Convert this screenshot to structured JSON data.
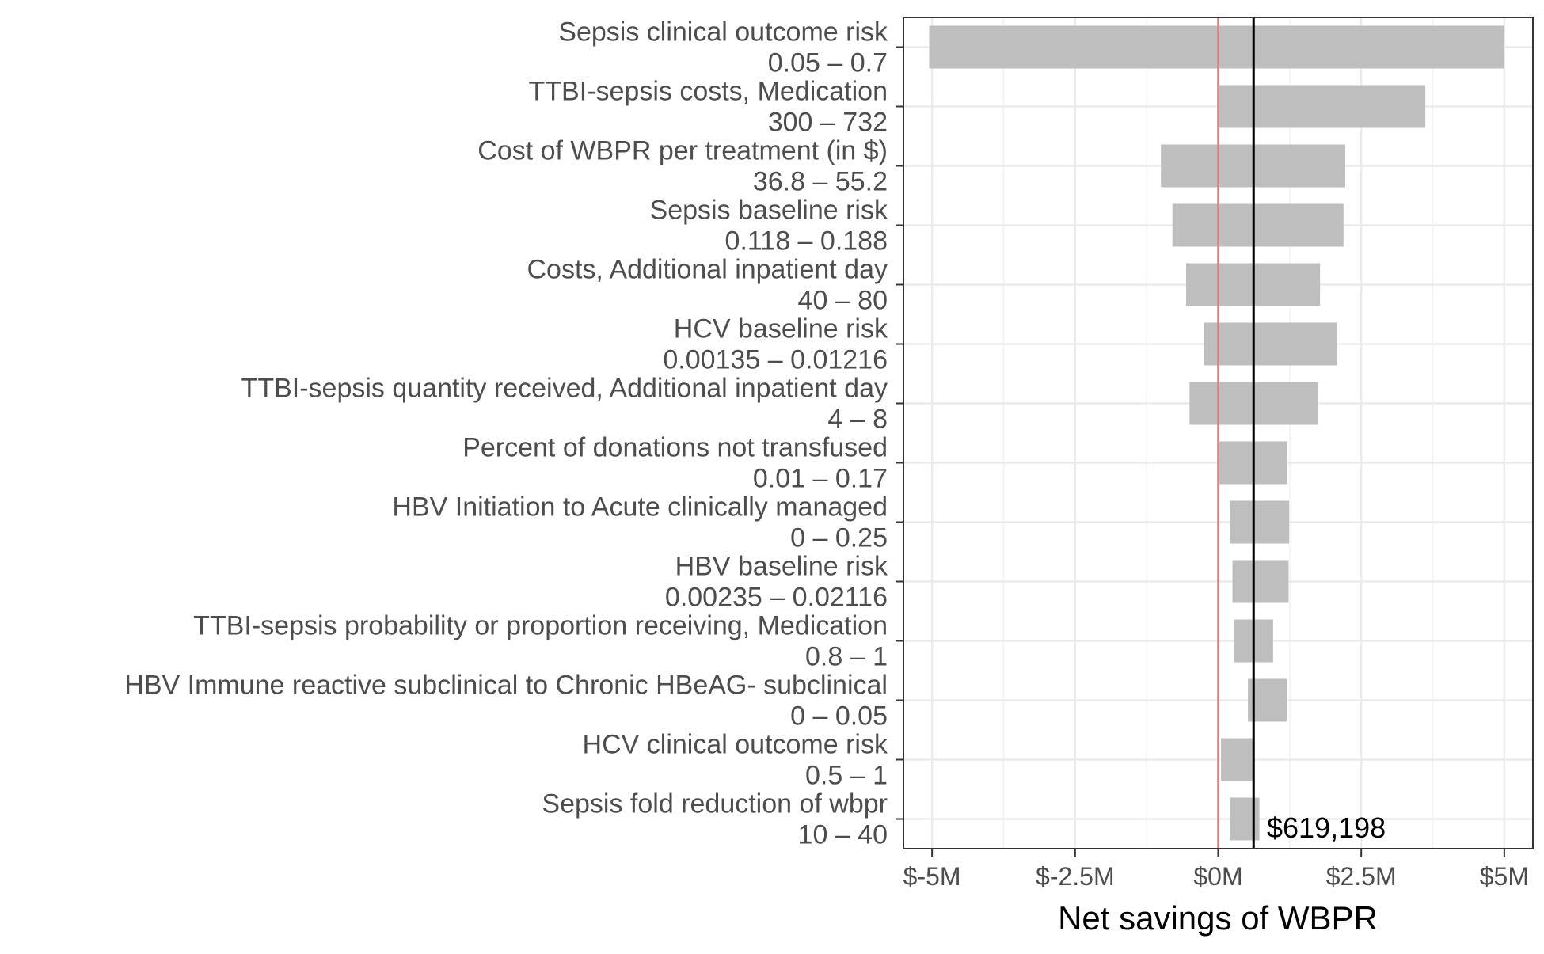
{
  "chart_data": {
    "type": "bar",
    "subtype": "tornado",
    "title": "",
    "xlabel": "Net savings of WBPR",
    "ylabel": "",
    "xlim": [
      -5500000,
      5500000
    ],
    "x_ticks": [
      -5000000,
      -2500000,
      0,
      2500000,
      5000000
    ],
    "x_tick_labels": [
      "$-5M",
      "$-2.5M",
      "$0M",
      "$2.5M",
      "$5M"
    ],
    "grid": true,
    "baseline": {
      "value": 619198,
      "label": "$619,198",
      "color": "#000000"
    },
    "zero_line": {
      "value": 0,
      "color": "#f8766d"
    },
    "bar_color": "#bebebe",
    "rows": [
      {
        "parameter": "Sepsis clinical outcome risk",
        "range": "0.05 – 0.7",
        "low": -5050000,
        "high": 5000000
      },
      {
        "parameter": "TTBI-sepsis costs, Medication",
        "range": "300 – 732",
        "low": 0,
        "high": 3620000
      },
      {
        "parameter": "Cost of WBPR per treatment (in $)",
        "range": "36.8 – 55.2",
        "low": -1000000,
        "high": 2220000
      },
      {
        "parameter": "Sepsis baseline risk",
        "range": "0.118 – 0.188",
        "low": -800000,
        "high": 2190000
      },
      {
        "parameter": "Costs, Additional inpatient day",
        "range": "40 – 80",
        "low": -560000,
        "high": 1780000
      },
      {
        "parameter": "HCV baseline risk",
        "range": "0.00135 – 0.01216",
        "low": -250000,
        "high": 2080000
      },
      {
        "parameter": "TTBI-sepsis quantity received, Additional inpatient day",
        "range": "4 – 8",
        "low": -500000,
        "high": 1740000
      },
      {
        "parameter": "Percent of donations not transfused",
        "range": "0.01 – 0.17",
        "low": 0,
        "high": 1210000
      },
      {
        "parameter": "HBV Initiation to Acute clinically managed",
        "range": "0 – 0.25",
        "low": 200000,
        "high": 1240000
      },
      {
        "parameter": "HBV baseline risk",
        "range": "0.00235 – 0.02116",
        "low": 250000,
        "high": 1230000
      },
      {
        "parameter": "TTBI-sepsis probability or proportion receiving, Medication",
        "range": "0.8 – 1",
        "low": 280000,
        "high": 960000
      },
      {
        "parameter": "HBV Immune reactive subclinical to Chronic HBeAG- subclinical",
        "range": "0 – 0.05",
        "low": 520000,
        "high": 1210000
      },
      {
        "parameter": "HCV clinical outcome risk",
        "range": "0.5 – 1",
        "low": 50000,
        "high": 619198
      },
      {
        "parameter": "Sepsis fold reduction of wbpr",
        "range": "10 – 40",
        "low": 200000,
        "high": 720000
      }
    ]
  }
}
